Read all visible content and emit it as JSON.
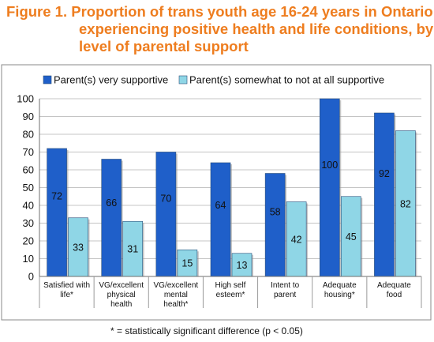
{
  "title_lines": [
    "Figure 1.  Proportion of trans youth age 16-24 years in Ontario",
    "experiencing positive health and life conditions, by",
    "level of parental support"
  ],
  "footnote": "* = statistically significant difference (p < 0.05)",
  "colors": {
    "title": "#ee7d1f",
    "series_1": "#1f5fc9",
    "series_2": "#8fd6e6"
  },
  "chart_data": {
    "type": "bar",
    "categories": [
      [
        "Satisfied with",
        "life*"
      ],
      [
        "VG/excellent",
        "physical",
        "health"
      ],
      [
        "VG/excellent",
        "mental",
        "health*"
      ],
      [
        "High self",
        "esteem*"
      ],
      [
        "Intent to",
        "parent"
      ],
      [
        "Adequate",
        "housing*"
      ],
      [
        "Adequate",
        "food"
      ]
    ],
    "series": [
      {
        "name": "Parent(s) very supportive",
        "values": [
          72,
          66,
          70,
          64,
          58,
          100,
          92
        ]
      },
      {
        "name": "Parent(s) somewhat to not at all supportive",
        "values": [
          33,
          31,
          15,
          13,
          42,
          45,
          82
        ]
      }
    ],
    "ylim": [
      0,
      100
    ],
    "yticks": [
      0,
      10,
      20,
      30,
      40,
      50,
      60,
      70,
      80,
      90,
      100
    ],
    "grid": true,
    "legend_position": "top",
    "data_labels": true
  }
}
